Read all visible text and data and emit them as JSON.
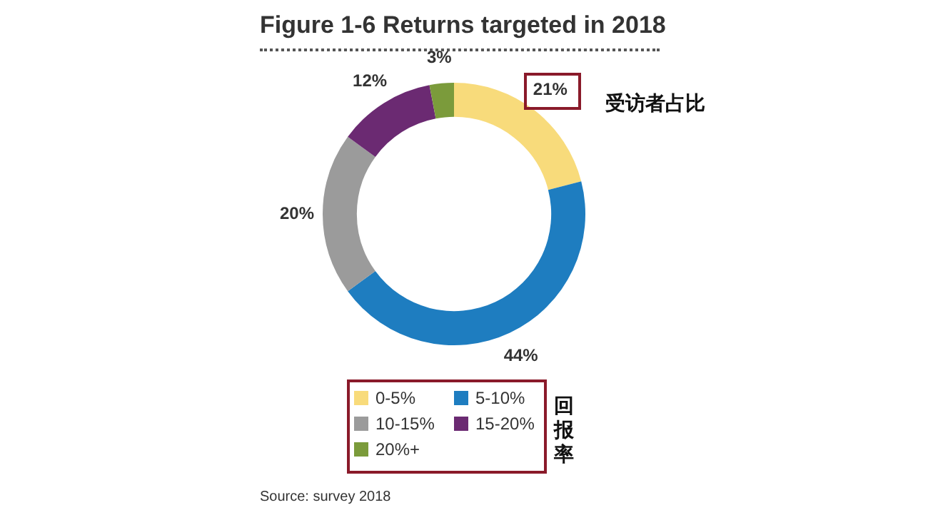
{
  "chart_data": {
    "type": "donut",
    "title": "Figure 1-6 Returns targeted in 2018",
    "categories": [
      "0-5%",
      "5-10%",
      "10-15%",
      "15-20%",
      "20%+"
    ],
    "values": [
      21,
      44,
      20,
      12,
      3
    ],
    "colors": [
      "#f8db7b",
      "#1e7dc0",
      "#9b9b9b",
      "#6b2a72",
      "#7b9b3b"
    ],
    "value_labels": [
      "21%",
      "44%",
      "20%",
      "12%",
      "3%"
    ],
    "legend": "bottom",
    "annotations": [
      "受访者占比",
      "回报率",
      "Source: survey 2018"
    ]
  }
}
